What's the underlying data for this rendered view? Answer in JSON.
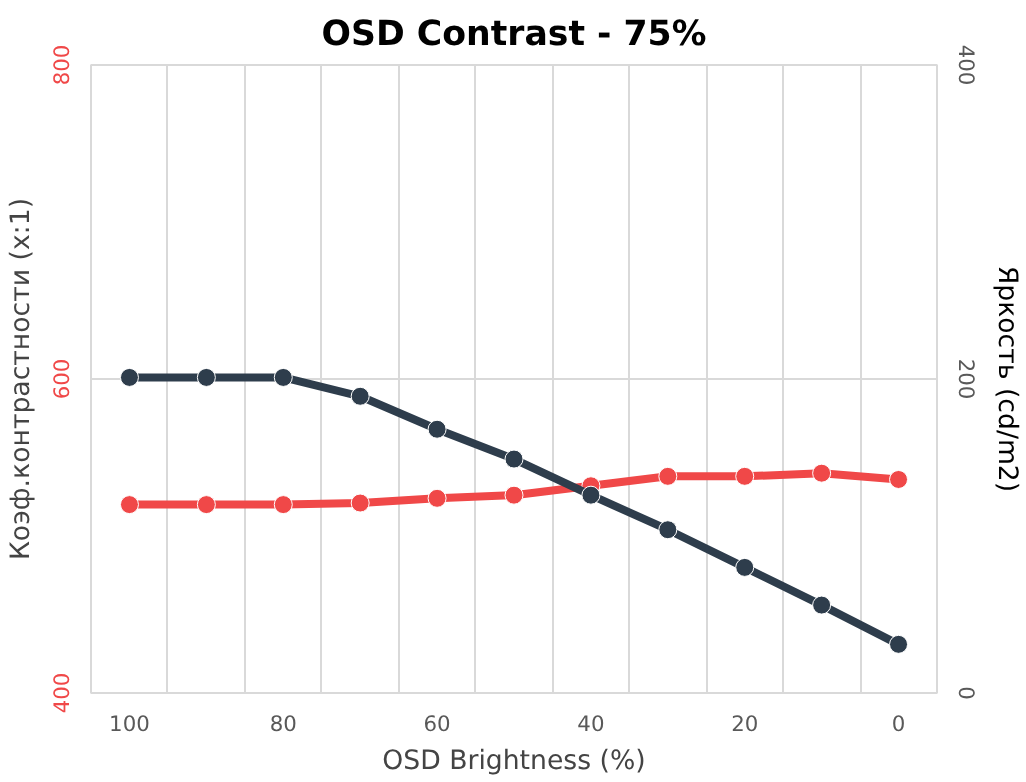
{
  "chart_data": {
    "type": "line",
    "title": "OSD Contrast - 75%",
    "xlabel": "OSD Brightness (%)",
    "ylabel": "Коэф.контрастности (x:1)",
    "y2label": "Яркость (cd/m2)",
    "x": [
      100,
      90,
      80,
      70,
      60,
      50,
      40,
      30,
      20,
      10,
      0
    ],
    "series": [
      {
        "color": "#f04848",
        "values": [
          520,
          520,
          520,
          521,
          524,
          526,
          532,
          538,
          538,
          540,
          536
        ]
      },
      {
        "color": "#2e3d4c",
        "axis": "y2",
        "values": [
          201,
          201,
          201,
          189,
          168,
          149,
          126,
          104,
          80,
          56,
          31
        ]
      }
    ],
    "xlim": [
      105,
      -5
    ],
    "xticks": [
      100,
      80,
      60,
      40,
      20,
      0,
      {
        "value": 105,
        "label": null
      },
      {
        "value": 95,
        "label": null
      },
      {
        "value": 85,
        "label": null
      },
      {
        "value": 75,
        "label": null
      },
      {
        "value": 65,
        "label": null
      },
      {
        "value": 55,
        "label": null
      },
      {
        "value": 45,
        "label": null
      },
      {
        "value": 35,
        "label": null
      },
      {
        "value": 25,
        "label": null
      },
      {
        "value": 15,
        "label": null
      },
      {
        "value": 5,
        "label": null
      },
      {
        "value": -5,
        "label": null
      }
    ],
    "ylim": [
      400,
      800
    ],
    "yticks": [
      400,
      600,
      800
    ],
    "y2lim": [
      0,
      400
    ],
    "y2ticks": [
      0,
      200,
      400
    ],
    "grid": true,
    "marker": "circle",
    "line_style": "solid"
  }
}
